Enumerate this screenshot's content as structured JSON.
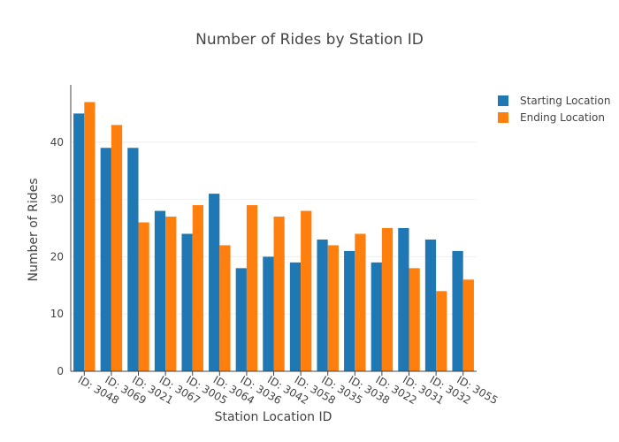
{
  "chart_data": {
    "type": "bar",
    "title": "Number of Rides by Station ID",
    "xlabel": "Station Location ID",
    "ylabel": "Number of Rides",
    "ylim": [
      0,
      50
    ],
    "yticks": [
      0,
      10,
      20,
      30,
      40
    ],
    "grid": true,
    "legend_position": "top-right",
    "categories": [
      "ID: 3048",
      "ID: 3069",
      "ID: 3021",
      "ID: 3067",
      "ID: 3005",
      "ID: 3064",
      "ID: 3036",
      "ID: 3042",
      "ID: 3058",
      "ID: 3035",
      "ID: 3038",
      "ID: 3022",
      "ID: 3031",
      "ID: 3032",
      "ID: 3055"
    ],
    "series": [
      {
        "name": "Starting Location",
        "color": "#1f77b4",
        "values": [
          45,
          39,
          39,
          28,
          24,
          31,
          18,
          20,
          19,
          23,
          21,
          19,
          25,
          23,
          21
        ]
      },
      {
        "name": "Ending Location",
        "color": "#ff7f0e",
        "values": [
          47,
          43,
          26,
          27,
          29,
          22,
          29,
          27,
          28,
          22,
          24,
          25,
          18,
          14,
          16
        ]
      }
    ]
  }
}
